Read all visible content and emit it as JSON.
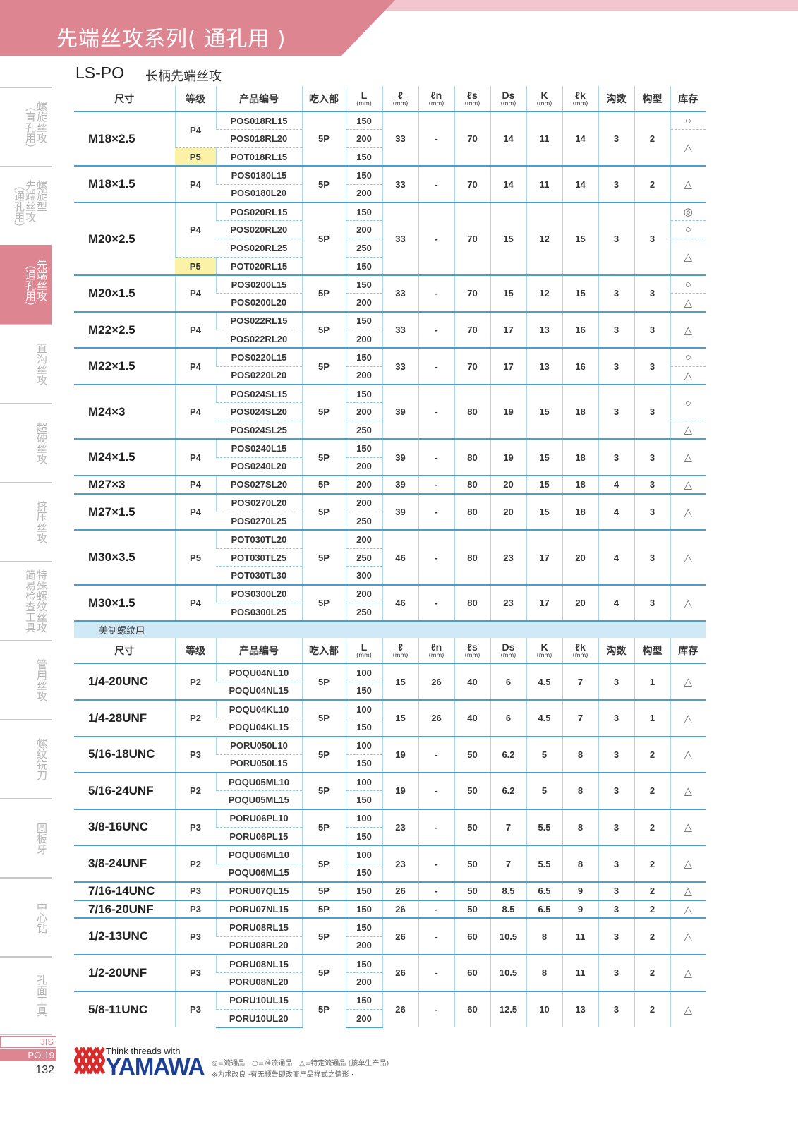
{
  "header": {
    "title": "先端丝攻系列( 通孔用 )",
    "series_code": "LS-PO",
    "series_name": "长柄先端丝攻"
  },
  "sidebar": {
    "items": [
      {
        "label": "螺旋丝攻\n（盲孔用）",
        "active": false
      },
      {
        "label": "螺旋型\n先端丝攻\n（通孔用）",
        "active": false
      },
      {
        "label": "先端丝攻\n（通孔用）",
        "active": true
      },
      {
        "label": "直沟丝攻",
        "active": false
      },
      {
        "label": "超硬丝攻",
        "active": false
      },
      {
        "label": "挤压丝攻",
        "active": false
      },
      {
        "label": "特殊螺纹丝攻\n简易检查工具",
        "active": false
      },
      {
        "label": "管用丝攻",
        "active": false
      },
      {
        "label": "螺纹铣刀",
        "active": false
      },
      {
        "label": "圆板牙",
        "active": false
      },
      {
        "label": "中心钻",
        "active": false
      },
      {
        "label": "孔面工具",
        "active": false
      }
    ]
  },
  "colors": {
    "accent_pink": "#de8592",
    "table_blue": "#4b9fcc",
    "highlight_yellow": "#fbf2a8",
    "section_blue": "#cfe9f6"
  },
  "table": {
    "columns": [
      {
        "label": "尺寸"
      },
      {
        "label": "等级"
      },
      {
        "label": "产品编号"
      },
      {
        "label": "吃入部"
      },
      {
        "label": "L",
        "unit": "(mm)"
      },
      {
        "label": "ℓ",
        "unit": "(mm)"
      },
      {
        "label": "ℓn",
        "unit": "(mm)"
      },
      {
        "label": "ℓs",
        "unit": "(mm)"
      },
      {
        "label": "Ds",
        "unit": "(mm)"
      },
      {
        "label": "K",
        "unit": "(mm)"
      },
      {
        "label": "ℓk",
        "unit": "(mm)"
      },
      {
        "label": "沟数"
      },
      {
        "label": "构型"
      },
      {
        "label": "库存"
      }
    ],
    "metric": [
      {
        "size": "M18×2.5",
        "grades": [
          {
            "g": "P4",
            "span": 2
          },
          {
            "g": "P5",
            "span": 1,
            "hl": true
          }
        ],
        "parts": [
          "POS018RL15",
          "POS018RL20",
          "POT018RL15"
        ],
        "L": [
          "150",
          "200",
          "150"
        ],
        "lead": "5P",
        "vals": [
          "33",
          "-",
          "70",
          "14",
          "11",
          "14",
          "3",
          "2"
        ],
        "stock": [
          {
            "m": "○",
            "span": 1
          },
          {
            "m": "△",
            "span": 2
          }
        ]
      },
      {
        "size": "M18×1.5",
        "grades": [
          {
            "g": "P4",
            "span": 2
          }
        ],
        "parts": [
          "POS0180L15",
          "POS0180L20"
        ],
        "L": [
          "150",
          "200"
        ],
        "lead": "5P",
        "vals": [
          "33",
          "-",
          "70",
          "14",
          "11",
          "14",
          "3",
          "2"
        ],
        "stock": [
          {
            "m": "△",
            "span": 2
          }
        ]
      },
      {
        "size": "M20×2.5",
        "grades": [
          {
            "g": "P4",
            "span": 3
          },
          {
            "g": "P5",
            "span": 1,
            "hl": true
          }
        ],
        "parts": [
          "POS020RL15",
          "POS020RL20",
          "POS020RL25",
          "POT020RL15"
        ],
        "L": [
          "150",
          "200",
          "250",
          "150"
        ],
        "lead": "5P",
        "vals": [
          "33",
          "-",
          "70",
          "15",
          "12",
          "15",
          "3",
          "3"
        ],
        "stock": [
          {
            "m": "◎",
            "span": 1
          },
          {
            "m": "○",
            "span": 1
          },
          {
            "m": "△",
            "span": 2
          }
        ]
      },
      {
        "size": "M20×1.5",
        "grades": [
          {
            "g": "P4",
            "span": 2
          }
        ],
        "parts": [
          "POS0200L15",
          "POS0200L20"
        ],
        "L": [
          "150",
          "200"
        ],
        "lead": "5P",
        "vals": [
          "33",
          "-",
          "70",
          "15",
          "12",
          "15",
          "3",
          "3"
        ],
        "stock": [
          {
            "m": "○",
            "span": 1
          },
          {
            "m": "△",
            "span": 1
          }
        ]
      },
      {
        "size": "M22×2.5",
        "grades": [
          {
            "g": "P4",
            "span": 2
          }
        ],
        "parts": [
          "POS022RL15",
          "POS022RL20"
        ],
        "L": [
          "150",
          "200"
        ],
        "lead": "5P",
        "vals": [
          "33",
          "-",
          "70",
          "17",
          "13",
          "16",
          "3",
          "3"
        ],
        "stock": [
          {
            "m": "△",
            "span": 2
          }
        ]
      },
      {
        "size": "M22×1.5",
        "grades": [
          {
            "g": "P4",
            "span": 2
          }
        ],
        "parts": [
          "POS0220L15",
          "POS0220L20"
        ],
        "L": [
          "150",
          "200"
        ],
        "lead": "5P",
        "vals": [
          "33",
          "-",
          "70",
          "17",
          "13",
          "16",
          "3",
          "3"
        ],
        "stock": [
          {
            "m": "○",
            "span": 1
          },
          {
            "m": "△",
            "span": 1
          }
        ]
      },
      {
        "size": "M24×3",
        "grades": [
          {
            "g": "P4",
            "span": 3
          }
        ],
        "parts": [
          "POS024SL15",
          "POS024SL20",
          "POS024SL25"
        ],
        "L": [
          "150",
          "200",
          "250"
        ],
        "lead": "5P",
        "vals": [
          "39",
          "-",
          "80",
          "19",
          "15",
          "18",
          "3",
          "3"
        ],
        "stock": [
          {
            "m": "○",
            "span": 2
          },
          {
            "m": "△",
            "span": 1
          }
        ]
      },
      {
        "size": "M24×1.5",
        "grades": [
          {
            "g": "P4",
            "span": 2
          }
        ],
        "parts": [
          "POS0240L15",
          "POS0240L20"
        ],
        "L": [
          "150",
          "200"
        ],
        "lead": "5P",
        "vals": [
          "39",
          "-",
          "80",
          "19",
          "15",
          "18",
          "3",
          "3"
        ],
        "stock": [
          {
            "m": "△",
            "span": 2
          }
        ]
      },
      {
        "size": "M27×3",
        "grades": [
          {
            "g": "P4",
            "span": 1
          }
        ],
        "parts": [
          "POS027SL20"
        ],
        "L": [
          "200"
        ],
        "lead": "5P",
        "vals": [
          "39",
          "-",
          "80",
          "20",
          "15",
          "18",
          "4",
          "3"
        ],
        "stock": [
          {
            "m": "△",
            "span": 1
          }
        ]
      },
      {
        "size": "M27×1.5",
        "grades": [
          {
            "g": "P4",
            "span": 2
          }
        ],
        "parts": [
          "POS0270L20",
          "POS0270L25"
        ],
        "L": [
          "200",
          "250"
        ],
        "lead": "5P",
        "vals": [
          "39",
          "-",
          "80",
          "20",
          "15",
          "18",
          "4",
          "3"
        ],
        "stock": [
          {
            "m": "△",
            "span": 2
          }
        ]
      },
      {
        "size": "M30×3.5",
        "grades": [
          {
            "g": "P5",
            "span": 3
          }
        ],
        "parts": [
          "POT030TL20",
          "POT030TL25",
          "POT030TL30"
        ],
        "L": [
          "200",
          "250",
          "300"
        ],
        "lead": "5P",
        "vals": [
          "46",
          "-",
          "80",
          "23",
          "17",
          "20",
          "4",
          "3"
        ],
        "stock": [
          {
            "m": "△",
            "span": 3
          }
        ]
      },
      {
        "size": "M30×1.5",
        "grades": [
          {
            "g": "P4",
            "span": 2
          }
        ],
        "parts": [
          "POS0300L20",
          "POS0300L25"
        ],
        "L": [
          "200",
          "250"
        ],
        "lead": "5P",
        "vals": [
          "46",
          "-",
          "80",
          "23",
          "17",
          "20",
          "4",
          "3"
        ],
        "stock": [
          {
            "m": "△",
            "span": 2
          }
        ]
      }
    ],
    "section_label": "美制螺纹用",
    "inch": [
      {
        "size": "1/4-20UNC",
        "grades": [
          {
            "g": "P2",
            "span": 2
          }
        ],
        "parts": [
          "POQU04NL10",
          "POQU04NL15"
        ],
        "L": [
          "100",
          "150"
        ],
        "lead": "5P",
        "vals": [
          "15",
          "26",
          "40",
          "6",
          "4.5",
          "7",
          "3",
          "1"
        ],
        "stock": [
          {
            "m": "△",
            "span": 2
          }
        ]
      },
      {
        "size": "1/4-28UNF",
        "grades": [
          {
            "g": "P2",
            "span": 2
          }
        ],
        "parts": [
          "POQU04KL10",
          "POQU04KL15"
        ],
        "L": [
          "100",
          "150"
        ],
        "lead": "5P",
        "vals": [
          "15",
          "26",
          "40",
          "6",
          "4.5",
          "7",
          "3",
          "1"
        ],
        "stock": [
          {
            "m": "△",
            "span": 2
          }
        ]
      },
      {
        "size": "5/16-18UNC",
        "grades": [
          {
            "g": "P3",
            "span": 2
          }
        ],
        "parts": [
          "PORU050L10",
          "PORU050L15"
        ],
        "L": [
          "100",
          "150"
        ],
        "lead": "5P",
        "vals": [
          "19",
          "-",
          "50",
          "6.2",
          "5",
          "8",
          "3",
          "2"
        ],
        "stock": [
          {
            "m": "△",
            "span": 2
          }
        ]
      },
      {
        "size": "5/16-24UNF",
        "grades": [
          {
            "g": "P2",
            "span": 2
          }
        ],
        "parts": [
          "POQU05ML10",
          "POQU05ML15"
        ],
        "L": [
          "100",
          "150"
        ],
        "lead": "5P",
        "vals": [
          "19",
          "-",
          "50",
          "6.2",
          "5",
          "8",
          "3",
          "2"
        ],
        "stock": [
          {
            "m": "△",
            "span": 2
          }
        ]
      },
      {
        "size": "3/8-16UNC",
        "grades": [
          {
            "g": "P3",
            "span": 2
          }
        ],
        "parts": [
          "PORU06PL10",
          "PORU06PL15"
        ],
        "L": [
          "100",
          "150"
        ],
        "lead": "5P",
        "vals": [
          "23",
          "-",
          "50",
          "7",
          "5.5",
          "8",
          "3",
          "2"
        ],
        "stock": [
          {
            "m": "△",
            "span": 2
          }
        ]
      },
      {
        "size": "3/8-24UNF",
        "grades": [
          {
            "g": "P2",
            "span": 2
          }
        ],
        "parts": [
          "POQU06ML10",
          "POQU06ML15"
        ],
        "L": [
          "100",
          "150"
        ],
        "lead": "5P",
        "vals": [
          "23",
          "-",
          "50",
          "7",
          "5.5",
          "8",
          "3",
          "2"
        ],
        "stock": [
          {
            "m": "△",
            "span": 2
          }
        ]
      },
      {
        "size": "7/16-14UNC",
        "grades": [
          {
            "g": "P3",
            "span": 1
          }
        ],
        "parts": [
          "PORU07QL15"
        ],
        "L": [
          "150"
        ],
        "lead": "5P",
        "vals": [
          "26",
          "-",
          "50",
          "8.5",
          "6.5",
          "9",
          "3",
          "2"
        ],
        "stock": [
          {
            "m": "△",
            "span": 1
          }
        ]
      },
      {
        "size": "7/16-20UNF",
        "grades": [
          {
            "g": "P3",
            "span": 1
          }
        ],
        "parts": [
          "PORU07NL15"
        ],
        "L": [
          "150"
        ],
        "lead": "5P",
        "vals": [
          "26",
          "-",
          "50",
          "8.5",
          "6.5",
          "9",
          "3",
          "2"
        ],
        "stock": [
          {
            "m": "△",
            "span": 1
          }
        ]
      },
      {
        "size": "1/2-13UNC",
        "grades": [
          {
            "g": "P3",
            "span": 2
          }
        ],
        "parts": [
          "PORU08RL15",
          "PORU08RL20"
        ],
        "L": [
          "150",
          "200"
        ],
        "lead": "5P",
        "vals": [
          "26",
          "-",
          "60",
          "10.5",
          "8",
          "11",
          "3",
          "2"
        ],
        "stock": [
          {
            "m": "△",
            "span": 2
          }
        ]
      },
      {
        "size": "1/2-20UNF",
        "grades": [
          {
            "g": "P3",
            "span": 2
          }
        ],
        "parts": [
          "PORU08NL15",
          "PORU08NL20"
        ],
        "L": [
          "150",
          "200"
        ],
        "lead": "5P",
        "vals": [
          "26",
          "-",
          "60",
          "10.5",
          "8",
          "11",
          "3",
          "2"
        ],
        "stock": [
          {
            "m": "△",
            "span": 2
          }
        ]
      },
      {
        "size": "5/8-11UNC",
        "grades": [
          {
            "g": "P3",
            "span": 2
          }
        ],
        "parts": [
          "PORU10UL15",
          "PORU10UL20"
        ],
        "L": [
          "150",
          "200"
        ],
        "lead": "5P",
        "vals": [
          "26",
          "-",
          "60",
          "12.5",
          "10",
          "13",
          "3",
          "2"
        ],
        "stock": [
          {
            "m": "△",
            "span": 2
          }
        ]
      }
    ]
  },
  "footer": {
    "standard": "JIS",
    "page_code": "PO-19",
    "page_number": "132",
    "brand_tagline": "Think threads with",
    "brand_name": "YAMAWA",
    "legend": "◎=流通品　○=准流通品　△=特定流通品 (接单生产品)",
    "note": "※为求改良 ·有无预告即改变产品样式之情形 ·"
  }
}
